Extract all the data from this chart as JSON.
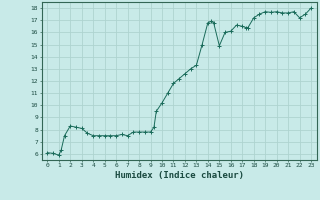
{
  "x_data": [
    0,
    0.5,
    1,
    1.2,
    1.5,
    2,
    2.5,
    3,
    3.5,
    4,
    4.5,
    5,
    5.5,
    6,
    6.5,
    7,
    7.5,
    8,
    8.5,
    9,
    9.3,
    9.5,
    10,
    10.5,
    11,
    11.5,
    12,
    12.5,
    13,
    13.5,
    14,
    14.3,
    14.5,
    15,
    15.5,
    16,
    16.5,
    17,
    17.3,
    17.5,
    18,
    18.5,
    19,
    19.5,
    20,
    20.5,
    21,
    21.5,
    22,
    22.5,
    23
  ],
  "y_data": [
    6.1,
    6.05,
    5.9,
    6.3,
    7.5,
    8.3,
    8.2,
    8.1,
    7.7,
    7.5,
    7.5,
    7.5,
    7.5,
    7.5,
    7.6,
    7.5,
    7.8,
    7.8,
    7.8,
    7.8,
    8.2,
    9.5,
    10.2,
    11.0,
    11.8,
    12.2,
    12.6,
    13.0,
    13.3,
    15.0,
    16.8,
    16.9,
    16.8,
    14.9,
    16.0,
    16.1,
    16.6,
    16.5,
    16.4,
    16.4,
    17.2,
    17.5,
    17.7,
    17.65,
    17.7,
    17.6,
    17.6,
    17.7,
    17.2,
    17.5,
    18.0
  ],
  "line_color": "#1a6b5a",
  "marker_color": "#1a6b5a",
  "bg_color": "#c8eae8",
  "grid_color": "#aed4d0",
  "xlabel": "Humidex (Indice chaleur)",
  "xlim": [
    -0.5,
    23.5
  ],
  "ylim": [
    5.5,
    18.5
  ],
  "yticks": [
    6,
    7,
    8,
    9,
    10,
    11,
    12,
    13,
    14,
    15,
    16,
    17,
    18
  ],
  "xticks": [
    0,
    1,
    2,
    3,
    4,
    5,
    6,
    7,
    8,
    9,
    10,
    11,
    12,
    13,
    14,
    15,
    16,
    17,
    18,
    19,
    20,
    21,
    22,
    23
  ]
}
